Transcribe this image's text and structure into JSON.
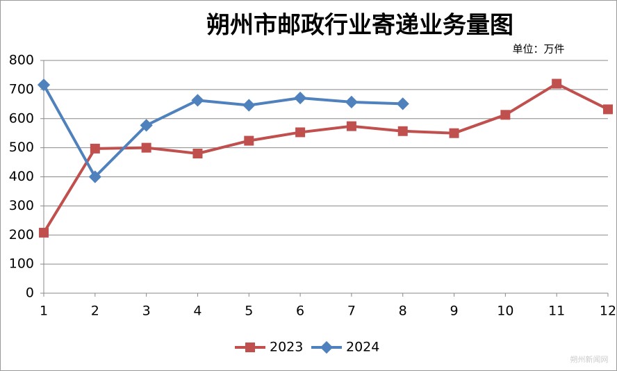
{
  "chart_data": {
    "type": "line",
    "title": "朔州市邮政行业寄递业务量图",
    "unit": "单位：万件",
    "watermark": "朔州新闻网",
    "x": [
      1,
      2,
      3,
      4,
      5,
      6,
      7,
      8,
      9,
      10,
      11,
      12
    ],
    "xlim": [
      1,
      12
    ],
    "xticks": [
      1,
      2,
      3,
      4,
      5,
      6,
      7,
      8,
      9,
      10,
      11,
      12
    ],
    "ylim": [
      0,
      800
    ],
    "yticks": [
      0,
      100,
      200,
      300,
      400,
      500,
      600,
      700,
      800
    ],
    "grid": true,
    "legend": "bottom",
    "series": [
      {
        "name": "2023",
        "color": "#c0504d",
        "marker": "square",
        "values": [
          208,
          497,
          500,
          480,
          524,
          553,
          574,
          557,
          550,
          613,
          720,
          632
        ]
      },
      {
        "name": "2024",
        "color": "#4f81bd",
        "marker": "diamond",
        "values": [
          716,
          400,
          577,
          663,
          646,
          671,
          657,
          651,
          null,
          null,
          null,
          null
        ]
      }
    ]
  }
}
